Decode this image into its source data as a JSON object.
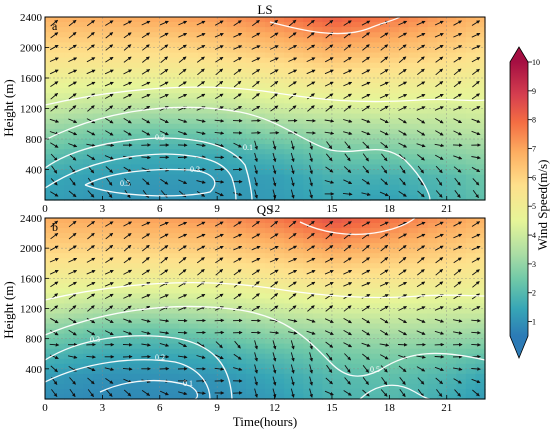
{
  "chart_data": [
    {
      "type": "heatmap",
      "panel_label": "a",
      "title": "LS",
      "xlabel": "",
      "ylabel": "Height (m)",
      "x_ticks": [
        "0",
        "3",
        "6",
        "9",
        "12",
        "15",
        "18",
        "21"
      ],
      "y_ticks": [
        "400",
        "800",
        "1200",
        "1600",
        "2000",
        "2400"
      ],
      "xlim": [
        0,
        23
      ],
      "ylim": [
        0,
        2400
      ],
      "grid": true,
      "z": {
        "time": [
          0,
          3,
          6,
          9,
          12,
          15,
          18,
          21,
          23
        ],
        "height": [
          0,
          300,
          600,
          900,
          1200,
          1500,
          1800,
          2100,
          2400
        ],
        "values": [
          [
            1.3,
            1.1,
            1.0,
            1.1,
            1.2,
            1.5,
            1.3,
            1.8,
            2.2
          ],
          [
            1.5,
            1.3,
            1.2,
            1.2,
            1.3,
            1.8,
            1.7,
            2.0,
            2.4
          ],
          [
            2.2,
            1.8,
            1.6,
            1.6,
            1.9,
            2.4,
            2.5,
            2.8,
            3.0
          ],
          [
            3.0,
            2.6,
            2.4,
            2.5,
            2.9,
            3.2,
            3.3,
            3.5,
            3.6
          ],
          [
            3.8,
            3.6,
            3.5,
            3.6,
            3.9,
            4.0,
            4.1,
            4.0,
            4.1
          ],
          [
            4.4,
            4.3,
            4.3,
            4.4,
            4.6,
            4.8,
            4.7,
            4.6,
            4.5
          ],
          [
            5.0,
            5.0,
            5.0,
            5.1,
            5.3,
            5.6,
            5.4,
            5.2,
            5.0
          ],
          [
            5.6,
            5.6,
            5.6,
            5.8,
            6.1,
            6.5,
            6.2,
            5.8,
            5.5
          ],
          [
            6.1,
            6.2,
            6.3,
            6.5,
            6.9,
            7.5,
            7.0,
            6.4,
            6.0
          ]
        ]
      },
      "contour_labels": [
        "0.1",
        "0.2",
        "0.3",
        "0.5"
      ]
    },
    {
      "type": "heatmap",
      "panel_label": "b",
      "title": "QS",
      "xlabel": "Time(hours)",
      "ylabel": "Height (m)",
      "x_ticks": [
        "0",
        "3",
        "6",
        "9",
        "12",
        "15",
        "18",
        "21"
      ],
      "y_ticks": [
        "400",
        "800",
        "1200",
        "1600",
        "2000",
        "2400"
      ],
      "xlim": [
        0,
        23
      ],
      "ylim": [
        0,
        2400
      ],
      "grid": true,
      "z": {
        "time": [
          0,
          3,
          6,
          9,
          12,
          15,
          18,
          21,
          23
        ],
        "height": [
          0,
          300,
          600,
          900,
          1200,
          1500,
          1800,
          2100,
          2400
        ],
        "values": [
          [
            0.9,
            0.8,
            0.8,
            0.9,
            1.2,
            1.8,
            2.0,
            1.6,
            1.2
          ],
          [
            1.2,
            1.0,
            1.0,
            1.1,
            1.5,
            2.0,
            2.2,
            1.9,
            1.5
          ],
          [
            1.9,
            1.6,
            1.5,
            1.7,
            2.1,
            2.5,
            2.7,
            2.5,
            2.3
          ],
          [
            2.8,
            2.4,
            2.3,
            2.6,
            3.0,
            3.2,
            3.4,
            3.3,
            3.2
          ],
          [
            3.8,
            3.5,
            3.5,
            3.7,
            3.9,
            4.1,
            4.1,
            4.0,
            4.0
          ],
          [
            4.5,
            4.4,
            4.4,
            4.5,
            4.7,
            4.9,
            4.8,
            4.7,
            4.6
          ],
          [
            5.1,
            5.1,
            5.1,
            5.2,
            5.4,
            5.7,
            5.5,
            5.3,
            5.1
          ],
          [
            5.7,
            5.7,
            5.8,
            5.9,
            6.2,
            6.7,
            6.3,
            5.9,
            5.6
          ],
          [
            6.2,
            6.3,
            6.4,
            6.6,
            7.0,
            7.7,
            7.1,
            6.5,
            6.1
          ]
        ]
      },
      "contour_labels": [
        "0.1",
        "0.2",
        "0.3",
        "0.5"
      ]
    }
  ],
  "colorbar": {
    "label": "Wind Speed(m/s)",
    "ticks": [
      "1",
      "2",
      "3",
      "4",
      "5",
      "6",
      "7",
      "8",
      "9",
      "10"
    ],
    "range": [
      0.5,
      10
    ],
    "colors": [
      "#2c7bb6",
      "#37a6b6",
      "#6cc7a8",
      "#abdda4",
      "#e6f598",
      "#fee08b",
      "#fdae61",
      "#f46d43",
      "#d53e4f",
      "#b2182b",
      "#7a0b3b"
    ]
  }
}
